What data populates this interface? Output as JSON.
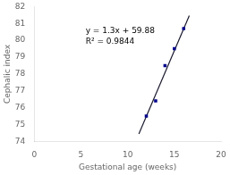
{
  "chart_data": {
    "type": "scatter",
    "xlabel": "Gestational age (weeks)",
    "ylabel": "Cephalic index",
    "series": [
      {
        "type": "line",
        "x": [
          11.2,
          16.6
        ],
        "values": [
          74.44,
          81.46
        ],
        "color": "#1a1a2e",
        "line_style": "solid"
      },
      {
        "type": "scatter",
        "x": [
          12,
          13,
          14,
          15,
          16
        ],
        "values": [
          75.5,
          76.4,
          78.5,
          79.5,
          80.7
        ],
        "color": "#00008B",
        "marker": "square"
      }
    ],
    "annotations": [
      {
        "text": [
          "y = 1.3x + 59.88",
          "R² = 0.9844"
        ],
        "x": 5.5,
        "y": 80.8
      }
    ],
    "xlim": [
      0,
      20
    ],
    "xticks": [
      0,
      5,
      10,
      15,
      20
    ],
    "ylim": [
      74,
      82
    ],
    "yticks": [
      74,
      75,
      76,
      77,
      78,
      79,
      80,
      81,
      82
    ],
    "grid": false
  }
}
